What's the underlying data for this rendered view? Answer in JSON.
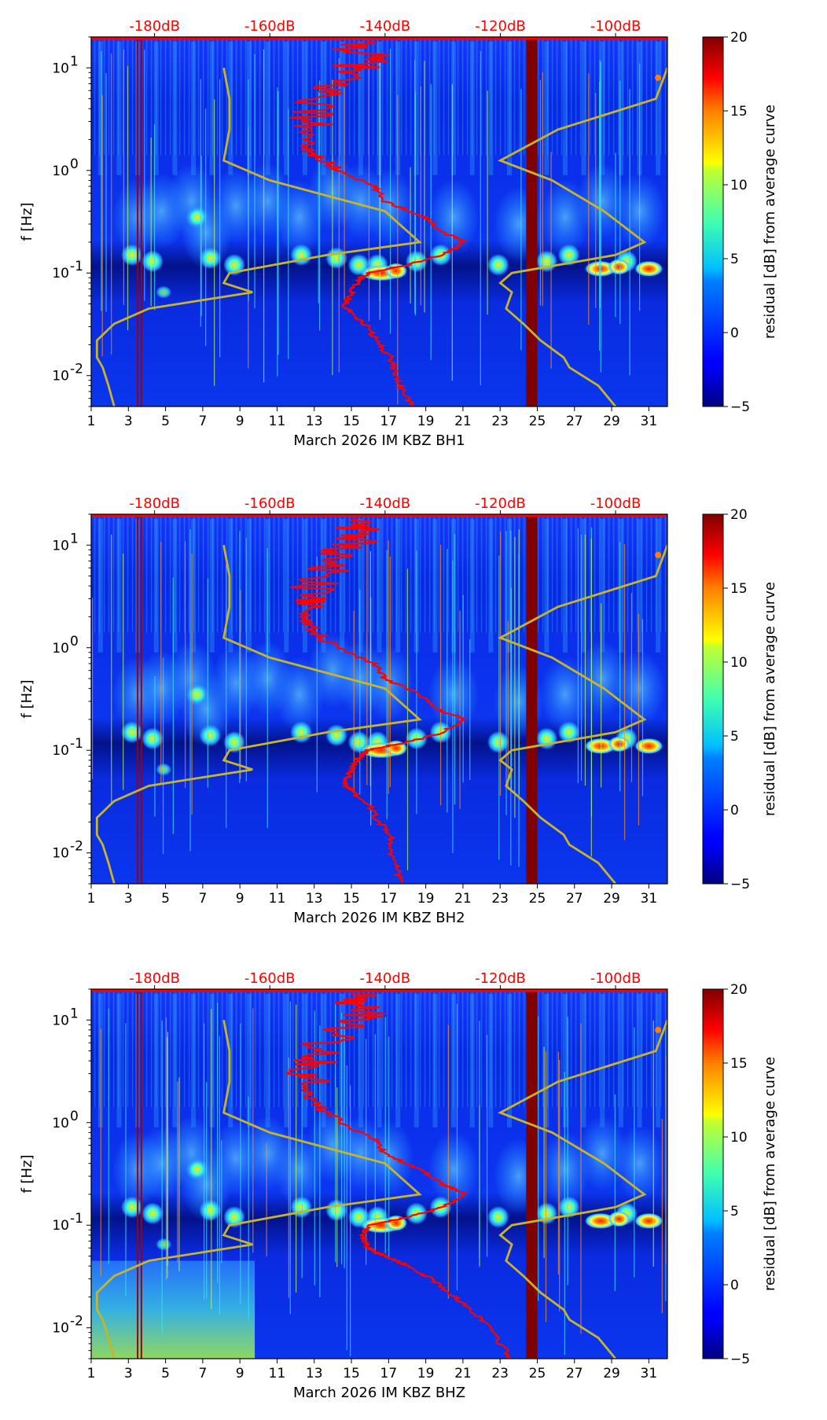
{
  "figure": {
    "description_month": "March 2026",
    "network": "IM",
    "station": "KBZ"
  },
  "chart_data": [
    {
      "type": "heatmap",
      "channel": "BH1",
      "xlabel": "March 2026 IM KBZ  BH1",
      "ylabel": "f [Hz]",
      "xlim": [
        1,
        32
      ],
      "ylim_hz": [
        0.005,
        20
      ],
      "x_ticks": [
        "1",
        "3",
        "5",
        "7",
        "9",
        "11",
        "13",
        "15",
        "17",
        "19",
        "21",
        "23",
        "25",
        "27",
        "29",
        "31"
      ],
      "y_ticks": [
        {
          "exp": "-2",
          "value": 0.01
        },
        {
          "exp": "-1",
          "value": 0.1
        },
        {
          "exp": "0",
          "value": 1
        },
        {
          "exp": "1",
          "value": 10
        }
      ],
      "top_axis_ticks": [
        "-180dB",
        "-160dB",
        "-140dB",
        "-120dB",
        "-100dB"
      ],
      "top_axis_db_range": [
        -191,
        -91
      ],
      "colorbar": {
        "label": "residual [dB] from average curve",
        "ticks": [
          "−5",
          "0",
          "5",
          "10",
          "15",
          "20"
        ],
        "range": [
          -5,
          20
        ]
      },
      "gap_days": [
        24.4,
        25.0
      ],
      "yellow_noise_model_db": {
        "freq_hz": [
          10,
          5,
          2.5,
          1.25,
          0.8,
          0.4,
          0.2,
          0.15,
          0.1,
          0.08,
          0.065,
          0.045,
          0.032,
          0.022,
          0.015,
          0.012,
          0.008,
          0.005
        ],
        "low_db": [
          -168,
          -167,
          -167,
          -168,
          -160,
          -140,
          -134,
          -150,
          -167,
          -168,
          -163,
          -181,
          -187,
          -190,
          -190,
          -189,
          -188,
          -187
        ],
        "high_db": [
          -91,
          -93,
          -110,
          -120,
          -111,
          -102,
          -95,
          -100,
          -118,
          -120,
          -118,
          -119,
          -116,
          -113,
          -109,
          -108,
          -103,
          -100
        ]
      },
      "red_psd_db": {
        "freq_hz": [
          18,
          12,
          8,
          5,
          3,
          2,
          1.5,
          1,
          0.7,
          0.5,
          0.35,
          0.25,
          0.2,
          0.15,
          0.12,
          0.1,
          0.08,
          0.06,
          0.05,
          0.04,
          0.03,
          0.02,
          0.015,
          0.01,
          0.007,
          0.005
        ],
        "db": [
          -146,
          -143,
          -148,
          -151,
          -153,
          -154,
          -153,
          -148,
          -142,
          -140,
          -133,
          -130,
          -126,
          -130,
          -136,
          -143,
          -145,
          -146,
          -147,
          -146,
          -143,
          -141,
          -139,
          -138,
          -137,
          -135
        ]
      }
    },
    {
      "type": "heatmap",
      "channel": "BH2",
      "xlabel": "March 2026 IM KBZ  BH2",
      "ylabel": "f [Hz]",
      "xlim": [
        1,
        32
      ],
      "ylim_hz": [
        0.005,
        20
      ],
      "x_ticks": [
        "1",
        "3",
        "5",
        "7",
        "9",
        "11",
        "13",
        "15",
        "17",
        "19",
        "21",
        "23",
        "25",
        "27",
        "29",
        "31"
      ],
      "y_ticks": [
        {
          "exp": "-2",
          "value": 0.01
        },
        {
          "exp": "-1",
          "value": 0.1
        },
        {
          "exp": "0",
          "value": 1
        },
        {
          "exp": "1",
          "value": 10
        }
      ],
      "top_axis_ticks": [
        "-180dB",
        "-160dB",
        "-140dB",
        "-120dB",
        "-100dB"
      ],
      "top_axis_db_range": [
        -191,
        -91
      ],
      "colorbar": {
        "label": "residual [dB] from average curve",
        "ticks": [
          "−5",
          "0",
          "5",
          "10",
          "15",
          "20"
        ],
        "range": [
          -5,
          20
        ]
      },
      "gap_days": [
        24.4,
        25.0
      ],
      "yellow_noise_model_db": {
        "freq_hz": [
          10,
          5,
          2.5,
          1.25,
          0.8,
          0.4,
          0.2,
          0.15,
          0.1,
          0.08,
          0.065,
          0.045,
          0.032,
          0.022,
          0.015,
          0.012,
          0.008,
          0.005
        ],
        "low_db": [
          -168,
          -167,
          -167,
          -168,
          -160,
          -140,
          -134,
          -150,
          -167,
          -168,
          -163,
          -181,
          -187,
          -190,
          -190,
          -189,
          -188,
          -187
        ],
        "high_db": [
          -91,
          -93,
          -110,
          -120,
          -111,
          -102,
          -95,
          -100,
          -118,
          -120,
          -118,
          -119,
          -116,
          -113,
          -109,
          -108,
          -103,
          -100
        ]
      },
      "red_psd_db": {
        "freq_hz": [
          18,
          12,
          8,
          5,
          3,
          2,
          1.5,
          1,
          0.7,
          0.5,
          0.35,
          0.25,
          0.2,
          0.15,
          0.12,
          0.1,
          0.08,
          0.06,
          0.05,
          0.04,
          0.03,
          0.02,
          0.015,
          0.01,
          0.007,
          0.005
        ],
        "db": [
          -146,
          -145,
          -148,
          -151,
          -153,
          -154,
          -153,
          -148,
          -142,
          -140,
          -134,
          -131,
          -126,
          -130,
          -136,
          -143,
          -145,
          -146,
          -147,
          -146,
          -143,
          -141,
          -139,
          -139,
          -138,
          -137
        ]
      }
    },
    {
      "type": "heatmap",
      "channel": "BHZ",
      "xlabel": "March 2026 IM KBZ  BHZ",
      "ylabel": "f [Hz]",
      "xlim": [
        1,
        32
      ],
      "ylim_hz": [
        0.005,
        20
      ],
      "x_ticks": [
        "1",
        "3",
        "5",
        "7",
        "9",
        "11",
        "13",
        "15",
        "17",
        "19",
        "21",
        "23",
        "25",
        "27",
        "29",
        "31"
      ],
      "y_ticks": [
        {
          "exp": "-2",
          "value": 0.01
        },
        {
          "exp": "-1",
          "value": 0.1
        },
        {
          "exp": "0",
          "value": 1
        },
        {
          "exp": "1",
          "value": 10
        }
      ],
      "top_axis_ticks": [
        "-180dB",
        "-160dB",
        "-140dB",
        "-120dB",
        "-100dB"
      ],
      "top_axis_db_range": [
        -191,
        -91
      ],
      "colorbar": {
        "label": "residual [dB] from average curve",
        "ticks": [
          "−5",
          "0",
          "5",
          "10",
          "15",
          "20"
        ],
        "range": [
          -5,
          20
        ]
      },
      "gap_days": [
        24.4,
        25.0
      ],
      "yellow_noise_model_db": {
        "freq_hz": [
          10,
          5,
          2.5,
          1.25,
          0.8,
          0.4,
          0.2,
          0.15,
          0.1,
          0.08,
          0.065,
          0.045,
          0.032,
          0.022,
          0.015,
          0.012,
          0.008,
          0.005
        ],
        "low_db": [
          -168,
          -167,
          -167,
          -168,
          -160,
          -140,
          -134,
          -150,
          -167,
          -168,
          -163,
          -181,
          -187,
          -190,
          -190,
          -189,
          -188,
          -187
        ],
        "high_db": [
          -91,
          -93,
          -110,
          -120,
          -111,
          -102,
          -95,
          -100,
          -118,
          -120,
          -118,
          -119,
          -116,
          -113,
          -109,
          -108,
          -103,
          -100
        ]
      },
      "red_psd_db": {
        "freq_hz": [
          18,
          12,
          8,
          5,
          3,
          2,
          1.5,
          1,
          0.7,
          0.5,
          0.35,
          0.25,
          0.2,
          0.15,
          0.12,
          0.1,
          0.08,
          0.06,
          0.05,
          0.04,
          0.03,
          0.02,
          0.015,
          0.01,
          0.007,
          0.005
        ],
        "db": [
          -146,
          -143,
          -149,
          -151,
          -153,
          -153,
          -152,
          -148,
          -142,
          -140,
          -134,
          -130,
          -126,
          -130,
          -136,
          -143,
          -144,
          -143,
          -140,
          -136,
          -132,
          -128,
          -125,
          -122,
          -120,
          -118
        ]
      }
    }
  ]
}
